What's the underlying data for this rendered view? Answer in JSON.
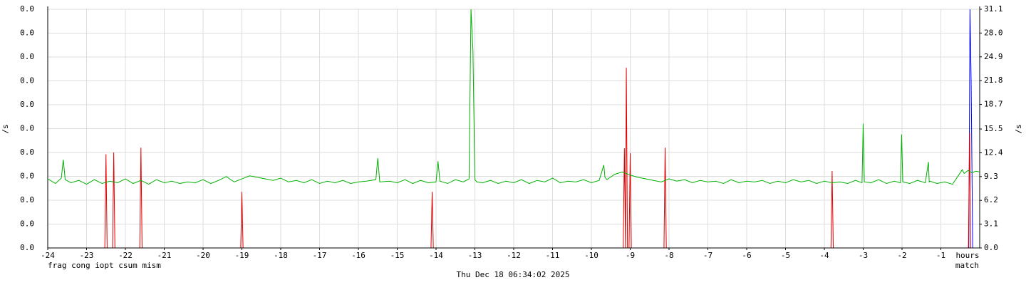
{
  "chart_data": {
    "type": "line",
    "ylabel": "/s",
    "y2label": "/s",
    "xlabel": "hours",
    "timestamp": "Thu Dec 18 06:34:02 2025",
    "xlim": [
      -24,
      0
    ],
    "xticks": [
      -24,
      -23,
      -22,
      -21,
      -20,
      -19,
      -18,
      -17,
      -16,
      -15,
      -14,
      -13,
      -12,
      -11,
      -10,
      -9,
      -8,
      -7,
      -6,
      -5,
      -4,
      -3,
      -2,
      -1
    ],
    "ylim": [
      0,
      0.04
    ],
    "yticks": [
      {
        "value": 0,
        "label": "0.0"
      },
      {
        "value": 0.004,
        "label": "0.0"
      },
      {
        "value": 0.008,
        "label": "0.0"
      },
      {
        "value": 0.012,
        "label": "0.0"
      },
      {
        "value": 0.016,
        "label": "0.0"
      },
      {
        "value": 0.02,
        "label": "0.0"
      },
      {
        "value": 0.024,
        "label": "0.0"
      },
      {
        "value": 0.028,
        "label": "0.0"
      },
      {
        "value": 0.032,
        "label": "0.0"
      },
      {
        "value": 0.036,
        "label": "0.0"
      },
      {
        "value": 0.04,
        "label": "0.0"
      }
    ],
    "y2lim": [
      0,
      31.1
    ],
    "y2ticks": [
      {
        "value": 0,
        "label": "0.0"
      },
      3.1,
      6.2,
      9.3,
      12.4,
      15.5,
      18.7,
      21.8,
      24.9,
      {
        "value": 28,
        "label": "28.0"
      },
      31.1
    ],
    "grid": true,
    "series": [
      {
        "name": "frag",
        "color": "#ff00ff",
        "x": [
          -24,
          0
        ],
        "values": [
          0,
          0
        ]
      },
      {
        "name": "cong",
        "color": "#00c0c0",
        "x": [
          -24,
          0
        ],
        "values": [
          0,
          0
        ]
      },
      {
        "name": "iopt",
        "color": "#0000ff",
        "x": [
          -24,
          -0.28,
          -0.25,
          -0.22,
          -0.18,
          0
        ],
        "values": [
          0,
          0,
          0.04,
          0.028,
          0,
          0
        ]
      },
      {
        "name": "csum",
        "color": "#c0c000",
        "x": [
          -24,
          0
        ],
        "values": [
          0,
          0
        ]
      },
      {
        "name": "mism",
        "color": "#e00000",
        "x": [
          -24,
          -22.53,
          -22.5,
          -22.47,
          -22.33,
          -22.3,
          -22.27,
          -21.63,
          -21.6,
          -21.57,
          -19.03,
          -19,
          -18.97,
          -14.13,
          -14.1,
          -14.07,
          -9.18,
          -9.15,
          -9.12,
          -9.1,
          -9.07,
          -9.03,
          -9,
          -8.97,
          -8.13,
          -8.1,
          -8.07,
          -3.83,
          -3.8,
          -3.77,
          -0.29,
          -0.26,
          -0.23,
          0
        ],
        "values": [
          0,
          0,
          0.0157,
          0,
          0,
          0.016,
          0,
          0,
          0.0168,
          0,
          0,
          0.0094,
          0,
          0,
          0.0094,
          0,
          0,
          0.0167,
          0,
          0.0302,
          0,
          0,
          0.0159,
          0,
          0,
          0.0168,
          0,
          0,
          0.0129,
          0,
          0,
          0.0193,
          0,
          0
        ]
      },
      {
        "name": "match",
        "color": "#00b000",
        "axis": "y2",
        "x": [
          -24,
          -23.8,
          -23.65,
          -23.6,
          -23.55,
          -23.4,
          -23.2,
          -23,
          -22.8,
          -22.6,
          -22.4,
          -22.2,
          -22,
          -21.8,
          -21.6,
          -21.4,
          -21.2,
          -21,
          -20.8,
          -20.6,
          -20.4,
          -20.2,
          -20,
          -19.8,
          -19.6,
          -19.4,
          -19.2,
          -19,
          -18.8,
          -18.6,
          -18.4,
          -18.2,
          -18,
          -17.8,
          -17.6,
          -17.4,
          -17.2,
          -17,
          -16.8,
          -16.6,
          -16.4,
          -16.2,
          -16,
          -15.8,
          -15.55,
          -15.5,
          -15.45,
          -15.2,
          -15,
          -14.8,
          -14.6,
          -14.4,
          -14.2,
          -14,
          -13.95,
          -13.9,
          -13.7,
          -13.5,
          -13.3,
          -13.15,
          -13.1,
          -13.05,
          -13,
          -12.95,
          -12.8,
          -12.6,
          -12.4,
          -12.2,
          -12,
          -11.8,
          -11.6,
          -11.4,
          -11.2,
          -11,
          -10.8,
          -10.6,
          -10.4,
          -10.2,
          -10,
          -9.8,
          -9.68,
          -9.65,
          -9.6,
          -9.4,
          -9.2,
          -9,
          -8.8,
          -8.6,
          -8.4,
          -8.2,
          -8,
          -7.8,
          -7.6,
          -7.4,
          -7.2,
          -7,
          -6.8,
          -6.6,
          -6.4,
          -6.2,
          -6,
          -5.8,
          -5.6,
          -5.4,
          -5.2,
          -5,
          -4.8,
          -4.6,
          -4.4,
          -4.2,
          -4,
          -3.8,
          -3.6,
          -3.4,
          -3.2,
          -3.03,
          -3,
          -2.97,
          -2.8,
          -2.6,
          -2.4,
          -2.2,
          -2.04,
          -2.01,
          -1.98,
          -1.8,
          -1.6,
          -1.4,
          -1.32,
          -1.3,
          -1.28,
          -1.1,
          -0.9,
          -0.7,
          -0.5,
          -0.45,
          -0.4,
          -0.3,
          -0.2,
          -0.1,
          0
        ],
        "values": [
          9.0,
          8.4,
          9.1,
          11.5,
          8.9,
          8.5,
          8.8,
          8.3,
          8.9,
          8.4,
          8.7,
          8.5,
          9.0,
          8.4,
          8.8,
          8.3,
          8.9,
          8.5,
          8.7,
          8.4,
          8.6,
          8.5,
          8.9,
          8.4,
          8.8,
          9.3,
          8.6,
          9.0,
          9.4,
          9.2,
          9.0,
          8.8,
          9.1,
          8.6,
          8.8,
          8.5,
          8.9,
          8.4,
          8.7,
          8.5,
          8.8,
          8.4,
          8.6,
          8.7,
          8.9,
          11.7,
          8.6,
          8.7,
          8.5,
          8.9,
          8.4,
          8.8,
          8.5,
          8.6,
          11.3,
          8.7,
          8.4,
          8.9,
          8.6,
          9.0,
          31.1,
          25.8,
          8.9,
          8.6,
          8.5,
          8.8,
          8.4,
          8.7,
          8.5,
          8.9,
          8.4,
          8.8,
          8.6,
          9.1,
          8.5,
          8.7,
          8.6,
          8.9,
          8.5,
          8.8,
          10.8,
          9.2,
          8.9,
          9.6,
          9.9,
          9.5,
          9.2,
          9.0,
          8.8,
          8.6,
          9.0,
          8.7,
          8.9,
          8.5,
          8.8,
          8.6,
          8.7,
          8.4,
          8.9,
          8.5,
          8.7,
          8.6,
          8.8,
          8.4,
          8.7,
          8.5,
          8.9,
          8.6,
          8.8,
          8.4,
          8.7,
          8.5,
          8.6,
          8.4,
          8.8,
          8.5,
          16.2,
          8.6,
          8.5,
          8.9,
          8.4,
          8.7,
          8.5,
          14.8,
          8.6,
          8.4,
          8.8,
          8.5,
          11.2,
          8.6,
          8.7,
          8.4,
          8.6,
          8.3,
          9.8,
          10.2,
          9.7,
          10.1,
          9.8,
          10.0,
          9.9
        ]
      }
    ]
  }
}
